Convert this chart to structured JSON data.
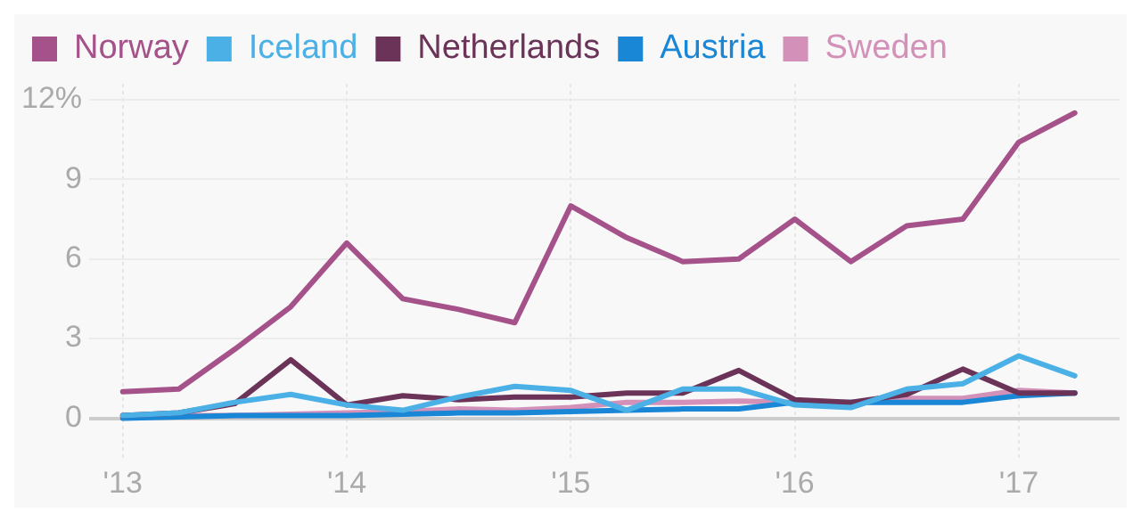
{
  "chart_data": {
    "type": "line",
    "x": [
      2013,
      2013.25,
      2013.5,
      2013.75,
      2014,
      2014.25,
      2014.5,
      2014.75,
      2015,
      2015.25,
      2015.5,
      2015.75,
      2016,
      2016.25,
      2016.5,
      2016.75,
      2017,
      2017.25
    ],
    "series": [
      {
        "name": "Norway",
        "color": "#a5528a",
        "values": [
          1.0,
          1.1,
          2.6,
          4.2,
          6.6,
          4.5,
          4.1,
          3.6,
          8.0,
          6.8,
          5.9,
          6.0,
          7.5,
          5.9,
          7.25,
          7.5,
          10.4,
          11.5
        ]
      },
      {
        "name": "Iceland",
        "color": "#4ab0e6",
        "values": [
          0.1,
          0.2,
          0.6,
          0.9,
          0.5,
          0.3,
          0.8,
          1.2,
          1.05,
          0.3,
          1.1,
          1.1,
          0.5,
          0.4,
          1.1,
          1.3,
          2.35,
          1.6
        ]
      },
      {
        "name": "Netherlands",
        "color": "#6b3358",
        "values": [
          0.1,
          0.2,
          0.55,
          2.2,
          0.5,
          0.85,
          0.7,
          0.8,
          0.8,
          0.95,
          0.95,
          1.8,
          0.7,
          0.6,
          0.9,
          1.85,
          0.95,
          0.95
        ]
      },
      {
        "name": "Austria",
        "color": "#1a86d6",
        "values": [
          0.0,
          0.05,
          0.1,
          0.1,
          0.1,
          0.15,
          0.2,
          0.2,
          0.25,
          0.3,
          0.35,
          0.35,
          0.6,
          0.6,
          0.6,
          0.6,
          0.85,
          0.95
        ]
      },
      {
        "name": "Sweden",
        "color": "#d390b8",
        "values": [
          0.1,
          0.1,
          0.1,
          0.15,
          0.2,
          0.25,
          0.35,
          0.3,
          0.4,
          0.6,
          0.6,
          0.65,
          0.6,
          0.55,
          0.75,
          0.75,
          1.05,
          0.95
        ]
      }
    ],
    "xlim": [
      2012.85,
      2017.45
    ],
    "xticks": [
      {
        "value": 2013,
        "label": "'13"
      },
      {
        "value": 2014,
        "label": "'14"
      },
      {
        "value": 2015,
        "label": "'15"
      },
      {
        "value": 2016,
        "label": "'16"
      },
      {
        "value": 2017,
        "label": "'17"
      }
    ],
    "ylim": [
      -1.6,
      12.6
    ],
    "yticks": [
      0,
      3,
      6,
      9,
      {
        "value": 12,
        "label": "12%"
      }
    ],
    "grid": true,
    "legend": "top left",
    "marker": "none",
    "line_style": "solid"
  }
}
